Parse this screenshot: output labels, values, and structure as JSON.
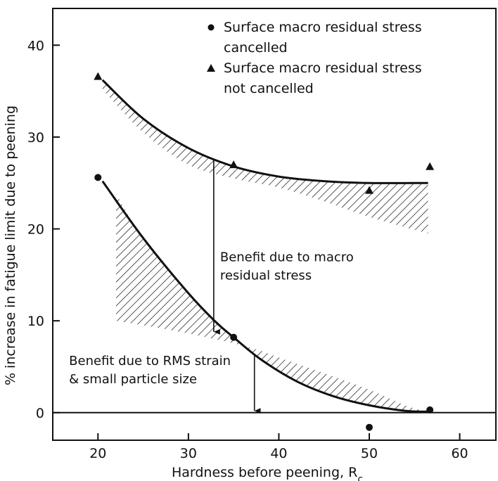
{
  "chart_data": {
    "type": "scatter",
    "title": "",
    "xlabel": "Hardness before peening, R",
    "xlabel_subscript": "c",
    "ylabel": "% increase in fatigue limit due to peening",
    "xlim": [
      15,
      64
    ],
    "ylim": [
      -3,
      44
    ],
    "x_ticks": [
      20,
      30,
      40,
      50,
      60
    ],
    "x_tick_labels": [
      "20",
      "30",
      "40",
      "50",
      "60"
    ],
    "y_ticks": [
      0,
      10,
      20,
      30,
      40
    ],
    "y_tick_labels": [
      "0",
      "10",
      "20",
      "30",
      "40"
    ],
    "grid": false,
    "legend_position": "top-right",
    "series": [
      {
        "marker": "circle",
        "legend_lines": [
          "Surface macro residual stress",
          "cancelled"
        ],
        "points": [
          {
            "x": 20,
            "y": 25.6
          },
          {
            "x": 35,
            "y": 8.2
          },
          {
            "x": 50,
            "y": -1.6
          },
          {
            "x": 56.7,
            "y": 0.3
          }
        ]
      },
      {
        "marker": "triangle",
        "legend_lines": [
          "Surface macro residual stress",
          "not cancelled"
        ],
        "points": [
          {
            "x": 20,
            "y": 36.6
          },
          {
            "x": 35,
            "y": 27.0
          },
          {
            "x": 50,
            "y": 24.2
          },
          {
            "x": 56.7,
            "y": 26.8
          }
        ]
      }
    ],
    "curves": [
      {
        "name": "upper",
        "x": [
          20.5,
          25,
          30,
          35,
          40,
          45,
          50,
          56.5
        ],
        "y": [
          36.2,
          32.0,
          28.8,
          26.8,
          25.7,
          25.2,
          25.0,
          25.0
        ]
      },
      {
        "name": "lower",
        "x": [
          20.5,
          25,
          30,
          33,
          35,
          38,
          42,
          46,
          50,
          54,
          57
        ],
        "y": [
          25.2,
          19.0,
          13.0,
          9.9,
          8.2,
          5.8,
          3.4,
          1.8,
          0.8,
          0.2,
          0.1
        ]
      }
    ],
    "bands": [
      {
        "name": "upper-band",
        "upper_x": [
          20.5,
          25,
          30,
          35,
          40,
          45,
          50,
          56.5
        ],
        "upper_y": [
          36.2,
          32.0,
          28.8,
          26.8,
          25.7,
          25.2,
          25.0,
          25.0
        ],
        "lower_x": [
          20.5,
          25,
          30,
          35,
          40,
          45,
          50,
          56.5
        ],
        "lower_y": [
          35.2,
          30.5,
          27.0,
          25.5,
          24.5,
          23.0,
          21.3,
          19.5
        ]
      },
      {
        "name": "lower-band",
        "upper_x": [
          22,
          25,
          30,
          33,
          35,
          38,
          42,
          46,
          50,
          54,
          56
        ],
        "upper_y": [
          23.8,
          19.0,
          13.0,
          9.9,
          8.2,
          5.8,
          3.4,
          1.8,
          0.8,
          0.2,
          0.2
        ],
        "lower_x": [
          22,
          28,
          33,
          37.5,
          40,
          45,
          50,
          54,
          56
        ],
        "lower_y": [
          10.0,
          9.0,
          8.0,
          6.9,
          6.0,
          4.3,
          2.5,
          0.8,
          0.2
        ]
      }
    ],
    "annotations": [
      {
        "lines": [
          "Benefit due to macro",
          "residual stress"
        ],
        "x": 33.5,
        "y": 16.5,
        "arrow": {
          "x": 32.8,
          "y_from": 27.5,
          "y_to": 8.8
        }
      },
      {
        "lines": [
          "Benefit due to RMS strain",
          "& small particle size"
        ],
        "x": 16.8,
        "y": 5.2,
        "arrow": {
          "x": 37.3,
          "y_from": 6.2,
          "y_to": 0.2
        }
      }
    ]
  }
}
